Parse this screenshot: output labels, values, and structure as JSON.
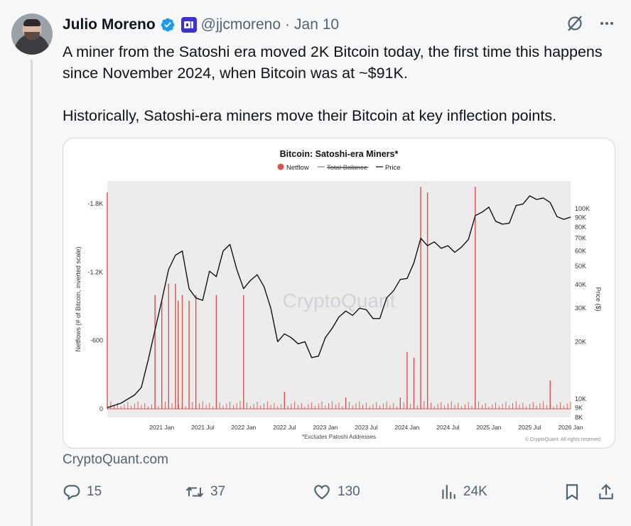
{
  "author": {
    "name": "Julio Moreno",
    "handle": "@jjcmoreno",
    "date": "Jan 10"
  },
  "tweet": {
    "paragraph1": "A miner from the Satoshi era moved 2K Bitcoin today, the first time this happens since November 2024, when Bitcoin was at ~$91K.",
    "paragraph2": "Historically, Satoshi-era miners move their Bitcoin at key inflection points."
  },
  "link_source": "CryptoQuant.com",
  "actions": {
    "replies": "15",
    "reposts": "37",
    "likes": "130",
    "views": "24K"
  },
  "colors": {
    "verified": "#1d9bf0",
    "affiliate": "#3e32c8",
    "netflow": "#d9534f",
    "price": "#111111",
    "plot_bg": "#ececec"
  },
  "icons": [
    "verified-badge-icon",
    "affiliate-badge-icon",
    "grok-icon",
    "more-icon",
    "reply-icon",
    "repost-icon",
    "like-icon",
    "views-icon",
    "bookmark-icon",
    "share-icon"
  ],
  "chart_data": {
    "type": "line",
    "title": "Bitcoin: Satoshi-era Miners*",
    "legend": [
      "Netflow",
      "Total Balance",
      "Price"
    ],
    "legend_placement": "top-center",
    "left_axis_label": "Netflows (# of Bitcoin, inverted scale)",
    "right_axis_label": "Price ($)",
    "left_ticks": [
      "-1.8K",
      "-1.2K",
      "-600",
      "0"
    ],
    "left_tick_values": [
      -1800,
      -1200,
      -600,
      0
    ],
    "right_ticks": [
      "100K",
      "90K",
      "80K",
      "70K",
      "60K",
      "50K",
      "40K",
      "30K",
      "20K",
      "10K",
      "9K",
      "8K"
    ],
    "right_tick_values": [
      100000,
      90000,
      80000,
      70000,
      60000,
      50000,
      40000,
      30000,
      20000,
      10000,
      9000,
      8000
    ],
    "right_scale": "log",
    "x_ticks": [
      "2021 Jan",
      "2021 Jul",
      "2022 Jan",
      "2022 Jul",
      "2023 Jan",
      "2023 Jul",
      "2024 Jan",
      "2024 Jul",
      "2025 Jan",
      "2025 Jul",
      "2026 Jan"
    ],
    "x_range": [
      "2020-05",
      "2026-01"
    ],
    "footnote": "*Excludes Patoshi Addresses",
    "watermark": "CryptoQuant",
    "copyright": "© CryptoQuant. All rights reserved",
    "series": [
      {
        "name": "Price",
        "x": [
          "2020-05",
          "2020-07",
          "2020-09",
          "2020-10",
          "2020-11",
          "2020-12",
          "2021-01",
          "2021-02",
          "2021-03",
          "2021-04",
          "2021-05",
          "2021-06",
          "2021-07",
          "2021-08",
          "2021-09",
          "2021-10",
          "2021-11",
          "2021-12",
          "2022-01",
          "2022-02",
          "2022-03",
          "2022-04",
          "2022-05",
          "2022-06",
          "2022-07",
          "2022-08",
          "2022-09",
          "2022-10",
          "2022-11",
          "2022-12",
          "2023-01",
          "2023-02",
          "2023-03",
          "2023-04",
          "2023-05",
          "2023-06",
          "2023-07",
          "2023-08",
          "2023-09",
          "2023-10",
          "2023-11",
          "2023-12",
          "2024-01",
          "2024-02",
          "2024-03",
          "2024-04",
          "2024-05",
          "2024-06",
          "2024-07",
          "2024-08",
          "2024-09",
          "2024-10",
          "2024-11",
          "2024-12",
          "2025-01",
          "2025-02",
          "2025-03",
          "2025-04",
          "2025-05",
          "2025-06",
          "2025-07",
          "2025-08",
          "2025-09",
          "2025-10",
          "2025-11",
          "2025-12",
          "2026-01"
        ],
        "values": [
          9000,
          9500,
          10500,
          11500,
          16000,
          23000,
          33000,
          48000,
          57000,
          60000,
          38000,
          34000,
          33000,
          47000,
          44000,
          60000,
          65000,
          48000,
          38000,
          42000,
          45000,
          39000,
          30000,
          20000,
          22000,
          21000,
          19500,
          20000,
          16500,
          16800,
          21000,
          23500,
          27000,
          29000,
          27500,
          30000,
          29500,
          26500,
          26500,
          34000,
          37000,
          42500,
          43000,
          52000,
          70000,
          64000,
          67000,
          62000,
          64000,
          59000,
          63000,
          69000,
          92000,
          96000,
          102000,
          86000,
          83000,
          84000,
          104000,
          106000,
          117000,
          112000,
          114000,
          108000,
          91000,
          88000,
          90500
        ]
      },
      {
        "name": "Netflow",
        "x": [
          "2020-05",
          "2020-12",
          "2021-01",
          "2021-02",
          "2021-03",
          "2021-03",
          "2021-04",
          "2021-05",
          "2021-06",
          "2021-09",
          "2022-01",
          "2022-07",
          "2023-04",
          "2023-12",
          "2024-01",
          "2024-02",
          "2024-03",
          "2024-04",
          "2024-11",
          "2025-10"
        ],
        "values": [
          -1900,
          -1000,
          -950,
          -1100,
          -1100,
          -950,
          -1000,
          -950,
          -1000,
          -1000,
          -1000,
          -150,
          -100,
          -100,
          -500,
          -450,
          -1950,
          -1900,
          -1950,
          -250
        ]
      }
    ]
  }
}
